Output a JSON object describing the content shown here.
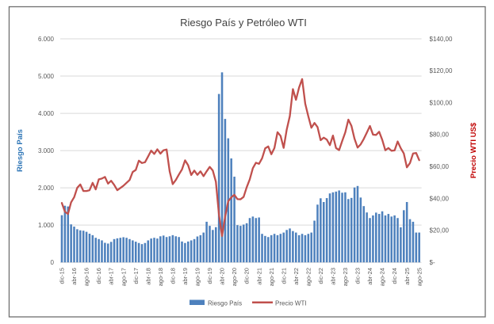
{
  "accent_colors": {
    "bar_blue": "#4E81BD",
    "line_red": "#C0504D",
    "grid_gray": "#D9D9D9",
    "tick_text_gray": "#595959",
    "frame_gray": "#6E6E6E",
    "left_axis_title_blue": "#2E75B6",
    "right_axis_title_red": "#C00000"
  },
  "chart_data": {
    "type": "combo-bar-line",
    "title": "Riesgo País y Petróleo WTI",
    "ylabel_left": "Riesgo País",
    "ylabel_right": "Precio WTI US$",
    "ylim_left": [
      0,
      6000
    ],
    "ylim_right": [
      0,
      140
    ],
    "ytick_labels_left": [
      "0",
      "1.000",
      "2.000",
      "3.000",
      "4.000",
      "5.000",
      "6.000"
    ],
    "ytick_labels_right": [
      "$-",
      "$20,00",
      "$40,00",
      "$60,00",
      "$80,00",
      "$100,00",
      "$120,00",
      "$140,00"
    ],
    "grid": "horizontal",
    "legend_position": "bottom",
    "x_tick_step": 4,
    "x": [
      "dic-15",
      "ene-16",
      "feb-16",
      "mar-16",
      "abr-16",
      "may-16",
      "jun-16",
      "jul-16",
      "ago-16",
      "sep-16",
      "oct-16",
      "nov-16",
      "dic-16",
      "ene-17",
      "feb-17",
      "mar-17",
      "abr-17",
      "may-17",
      "jun-17",
      "jul-17",
      "ago-17",
      "sep-17",
      "oct-17",
      "nov-17",
      "dic-17",
      "ene-18",
      "feb-18",
      "mar-18",
      "abr-18",
      "may-18",
      "jun-18",
      "jul-18",
      "ago-18",
      "sep-18",
      "oct-18",
      "nov-18",
      "dic-18",
      "ene-19",
      "feb-19",
      "mar-19",
      "abr-19",
      "may-19",
      "jun-19",
      "jul-19",
      "ago-19",
      "sep-19",
      "oct-19",
      "nov-19",
      "dic-19",
      "ene-20",
      "feb-20",
      "mar-20",
      "abr-20",
      "may-20",
      "jun-20",
      "jul-20",
      "ago-20",
      "sep-20",
      "oct-20",
      "nov-20",
      "dic-20",
      "ene-21",
      "feb-21",
      "mar-21",
      "abr-21",
      "may-21",
      "jun-21",
      "jul-21",
      "ago-21",
      "sep-21",
      "oct-21",
      "nov-21",
      "dic-21",
      "ene-22",
      "feb-22",
      "mar-22",
      "abr-22",
      "may-22",
      "jun-22",
      "jul-22",
      "ago-22",
      "sep-22",
      "oct-22",
      "nov-22",
      "dic-22",
      "ene-23",
      "feb-23",
      "mar-23",
      "abr-23",
      "may-23",
      "jun-23",
      "jul-23",
      "ago-23",
      "sep-23",
      "oct-23",
      "nov-23",
      "dic-23",
      "ene-24",
      "feb-24",
      "mar-24",
      "abr-24",
      "may-24",
      "jun-24",
      "jul-24",
      "ago-24",
      "sep-24",
      "oct-24",
      "nov-24",
      "dic-24",
      "ene-25",
      "feb-25",
      "mar-25",
      "abr-25",
      "may-25",
      "jun-25",
      "jul-25",
      "ago-25"
    ],
    "series": [
      {
        "name": "Riesgo País",
        "type": "bar",
        "axis": "left",
        "color": "#4E81BD",
        "values": [
          1266,
          1520,
          1500,
          1020,
          960,
          890,
          860,
          850,
          820,
          770,
          730,
          660,
          625,
          590,
          525,
          505,
          550,
          625,
          645,
          660,
          675,
          660,
          625,
          590,
          555,
          520,
          490,
          520,
          590,
          640,
          660,
          640,
          700,
          720,
          680,
          700,
          730,
          700,
          680,
          560,
          520,
          560,
          590,
          625,
          695,
          730,
          800,
          1090,
          980,
          870,
          945,
          4520,
          5100,
          3850,
          3330,
          2790,
          2300,
          1000,
          980,
          1015,
          1050,
          1190,
          1230,
          1190,
          1205,
          765,
          710,
          680,
          730,
          765,
          730,
          765,
          800,
          870,
          910,
          840,
          800,
          730,
          765,
          730,
          765,
          800,
          1120,
          1550,
          1720,
          1620,
          1725,
          1850,
          1880,
          1900,
          1930,
          1870,
          1880,
          1700,
          1730,
          2010,
          2050,
          1740,
          1510,
          1340,
          1190,
          1260,
          1335,
          1300,
          1370,
          1260,
          1300,
          1230,
          1260,
          1190,
          940,
          1400,
          1620,
          1160,
          1090,
          800,
          800
        ]
      },
      {
        "name": "Precio WTI",
        "type": "line",
        "axis": "right",
        "color": "#C0504D",
        "values": [
          37.2,
          31.7,
          30.3,
          37.6,
          40.8,
          46.7,
          48.8,
          44.7,
          44.7,
          45.2,
          49.8,
          45.7,
          52.0,
          52.5,
          53.5,
          49.3,
          51.1,
          48.5,
          45.2,
          46.6,
          48.0,
          49.8,
          51.6,
          56.6,
          57.9,
          63.7,
          62.2,
          62.7,
          66.3,
          70.0,
          67.9,
          70.8,
          68.1,
          70.2,
          70.7,
          57.0,
          49.0,
          51.6,
          55.0,
          58.2,
          63.9,
          60.8,
          54.7,
          57.5,
          54.8,
          57.0,
          54.0,
          57.0,
          59.8,
          57.5,
          50.5,
          29.9,
          16.5,
          28.6,
          38.3,
          40.7,
          42.3,
          39.6,
          39.5,
          41.0,
          47.0,
          52.0,
          59.0,
          62.4,
          61.7,
          65.2,
          71.4,
          72.6,
          67.7,
          71.6,
          81.5,
          79.2,
          71.7,
          83.2,
          91.6,
          108.5,
          101.8,
          109.5,
          114.8,
          99.4,
          91.5,
          84.3,
          87.3,
          84.7,
          76.5,
          78.1,
          76.9,
          73.4,
          79.4,
          71.6,
          70.3,
          76.0,
          81.4,
          89.4,
          85.5,
          77.4,
          71.9,
          73.9,
          77.3,
          81.3,
          85.4,
          80.0,
          79.8,
          81.8,
          76.7,
          70.2,
          71.6,
          69.9,
          70.1,
          75.7,
          71.5,
          68.2,
          59.5,
          62.2,
          68.2,
          68.5,
          64.0
        ]
      }
    ]
  }
}
